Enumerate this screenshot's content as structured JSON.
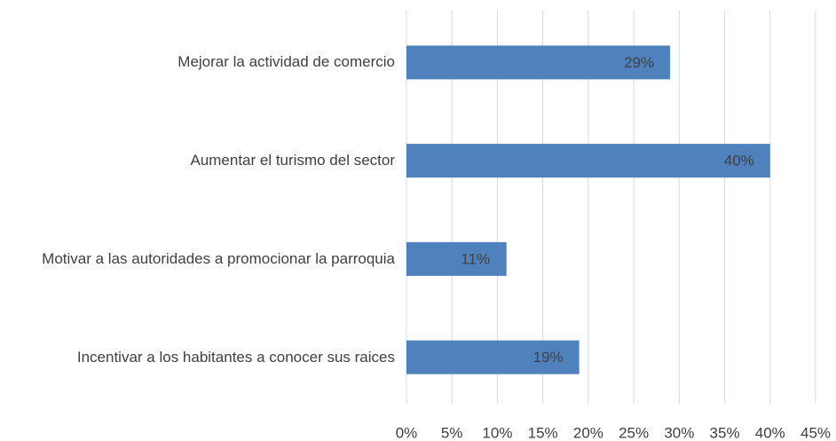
{
  "chart_data": {
    "type": "bar",
    "orientation": "horizontal",
    "categories": [
      "Mejorar la actividad de comercio",
      "Aumentar el turismo del sector",
      "Motivar a las autoridades a promocionar la parroquia",
      "Incentivar a los habitantes a conocer sus raices"
    ],
    "values": [
      29,
      40,
      11,
      19
    ],
    "value_labels": [
      "29%",
      "40%",
      "11%",
      "19%"
    ],
    "color": "#4f81bd",
    "xlim": [
      0,
      45
    ],
    "xticks": [
      {
        "value": 0,
        "label": "0%"
      },
      {
        "value": 5,
        "label": "5%"
      },
      {
        "value": 10,
        "label": "10%"
      },
      {
        "value": 15,
        "label": "15%"
      },
      {
        "value": 20,
        "label": "20%"
      },
      {
        "value": 25,
        "label": "25%"
      },
      {
        "value": 30,
        "label": "30%"
      },
      {
        "value": 35,
        "label": "35%"
      },
      {
        "value": 40,
        "label": "40%"
      },
      {
        "value": 45,
        "label": "45%"
      }
    ],
    "grid": true
  }
}
